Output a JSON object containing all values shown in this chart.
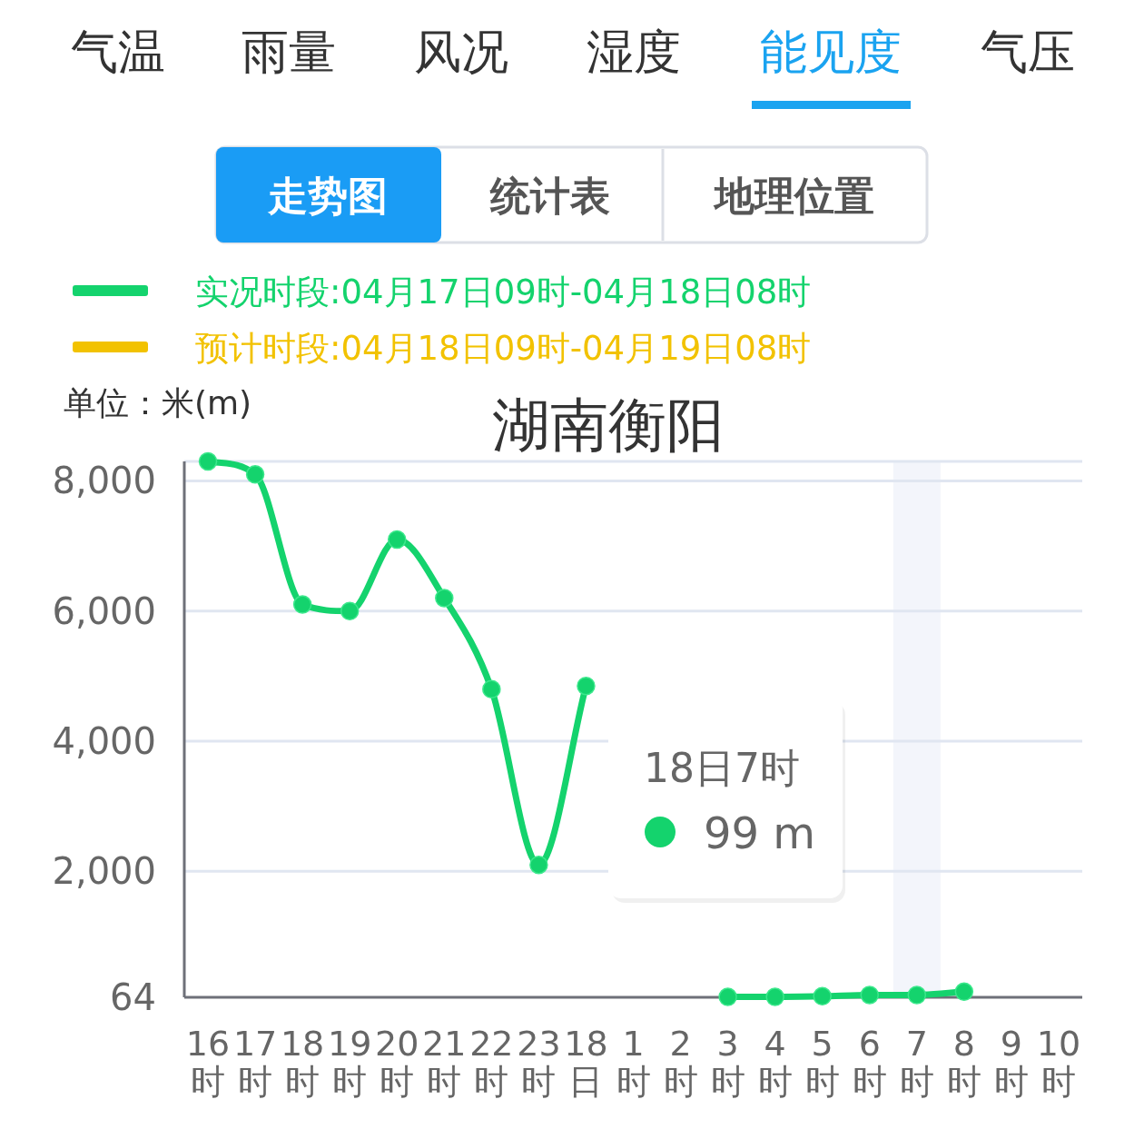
{
  "chart_data": {
    "type": "line",
    "title": "湖南衡阳",
    "ylabel": "单位：米(m)",
    "categories": [
      "16时",
      "17时",
      "18时",
      "19时",
      "20时",
      "21时",
      "22时",
      "23时",
      "18日",
      "1时",
      "2时",
      "3时",
      "4时",
      "5时",
      "6时",
      "7时",
      "8时",
      "9时",
      "10时"
    ],
    "series": [
      {
        "name": "实况时段:04月17日09时-04月18日08时",
        "color": "#14d36d",
        "values": [
          8300,
          8100,
          6100,
          6000,
          7100,
          6200,
          4800,
          2100,
          4850,
          null,
          null,
          70,
          70,
          80,
          100,
          99,
          150,
          null,
          null
        ]
      },
      {
        "name": "预计时段:04月18日09时-04月19日08时",
        "color": "#f2c200",
        "values": [
          null,
          null,
          null,
          null,
          null,
          null,
          null,
          null,
          null,
          null,
          null,
          null,
          null,
          null,
          null,
          null,
          null,
          null,
          null
        ]
      }
    ],
    "ylim": [
      64,
      8300
    ],
    "yticks": [
      64,
      {
        "value": 2000,
        "label": "2,000"
      },
      {
        "value": 4000,
        "label": "4,000"
      },
      {
        "value": 6000,
        "label": "6,000"
      },
      {
        "value": 8000,
        "label": "8,000"
      }
    ],
    "grid": "y",
    "legend": "top left",
    "marker": "circle",
    "line_style": "solid",
    "bands": [
      {
        "axis": "x",
        "from": "7时",
        "to": "7时",
        "color": "#f3f5fb"
      }
    ],
    "annotations": [
      "气温",
      "雨量",
      "风况",
      "湿度",
      "能见度",
      "气压",
      "走势图",
      "统计表",
      "地理位置",
      "18日7时",
      "99 m"
    ]
  }
}
